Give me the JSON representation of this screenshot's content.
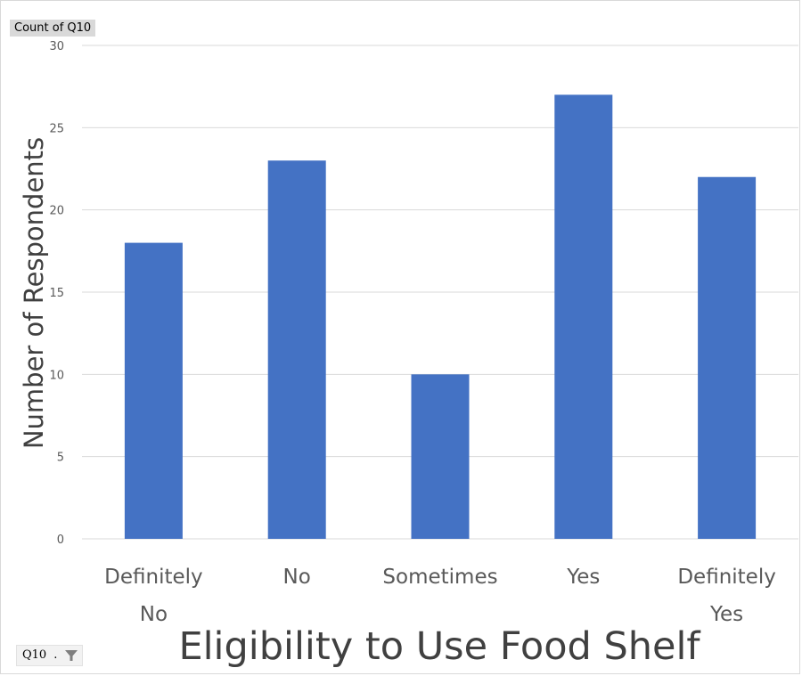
{
  "field_buttons": {
    "value_field": "Count of Q10",
    "axis_field": "Q10",
    "axis_field_dots": ".",
    "filter_icon": "filter-icon"
  },
  "chart_data": {
    "type": "bar",
    "categories": [
      [
        "Definitely",
        "No"
      ],
      [
        "No"
      ],
      [
        "Sometimes"
      ],
      [
        "Yes"
      ],
      [
        "Definitely",
        "Yes"
      ]
    ],
    "values": [
      18,
      23,
      10,
      27,
      22
    ],
    "ylabel": "Number of Respondents",
    "xlabel": "Eligibility to Use Food Shelf",
    "ylim": [
      0,
      30
    ],
    "yticks": [
      0,
      5,
      10,
      15,
      20,
      25,
      30
    ],
    "grid": true,
    "bar_color": "#4472c4",
    "grid_color": "#d9d9d9"
  }
}
